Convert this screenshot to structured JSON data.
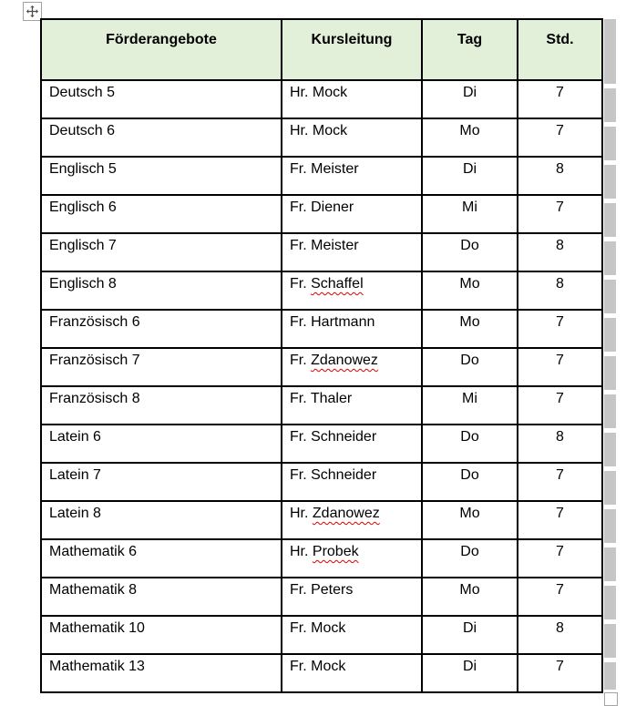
{
  "icons": {
    "move_handle": "four-arrows-move-icon",
    "resize_handle": "resize-square-icon"
  },
  "colors": {
    "header_bg": "#e2efd9",
    "table_border": "#000000",
    "squiggle": "#e00000",
    "ruler_gray": "#c6c6c6",
    "handle_border": "#a3a3a3"
  },
  "table": {
    "headers": [
      "Förderangebote",
      "Kursleitung",
      "Tag",
      "Std."
    ],
    "rows": [
      {
        "subject": "Deutsch 5",
        "leader_prefix": "Hr. ",
        "leader_name": "Mock",
        "misspelled": false,
        "day": "Di",
        "std": "7"
      },
      {
        "subject": "Deutsch 6",
        "leader_prefix": "Hr. ",
        "leader_name": "Mock",
        "misspelled": false,
        "day": "Mo",
        "std": "7"
      },
      {
        "subject": "Englisch 5",
        "leader_prefix": "Fr. ",
        "leader_name": "Meister",
        "misspelled": false,
        "day": "Di",
        "std": "8"
      },
      {
        "subject": "Englisch 6",
        "leader_prefix": "Fr. ",
        "leader_name": "Diener",
        "misspelled": false,
        "day": "Mi",
        "std": "7"
      },
      {
        "subject": "Englisch 7",
        "leader_prefix": "Fr. ",
        "leader_name": "Meister",
        "misspelled": false,
        "day": "Do",
        "std": "8"
      },
      {
        "subject": "Englisch 8",
        "leader_prefix": "Fr. ",
        "leader_name": "Schaffel",
        "misspelled": true,
        "day": "Mo",
        "std": "8"
      },
      {
        "subject": "Französisch 6",
        "leader_prefix": "Fr. ",
        "leader_name": "Hartmann",
        "misspelled": false,
        "day": "Mo",
        "std": "7"
      },
      {
        "subject": "Französisch 7",
        "leader_prefix": "Fr. ",
        "leader_name": "Zdanowez",
        "misspelled": true,
        "day": "Do",
        "std": "7"
      },
      {
        "subject": "Französisch 8",
        "leader_prefix": "Fr. ",
        "leader_name": "Thaler",
        "misspelled": false,
        "day": "Mi",
        "std": "7"
      },
      {
        "subject": "Latein 6",
        "leader_prefix": "Fr. ",
        "leader_name": "Schneider",
        "misspelled": false,
        "day": "Do",
        "std": "8"
      },
      {
        "subject": "Latein 7",
        "leader_prefix": "Fr. ",
        "leader_name": "Schneider",
        "misspelled": false,
        "day": "Do",
        "std": "7"
      },
      {
        "subject": "Latein 8",
        "leader_prefix": "Hr. ",
        "leader_name": "Zdanowez",
        "misspelled": true,
        "day": "Mo",
        "std": "7"
      },
      {
        "subject": "Mathematik 6",
        "leader_prefix": "Hr. ",
        "leader_name": "Probek",
        "misspelled": true,
        "day": "Do",
        "std": "7"
      },
      {
        "subject": "Mathematik 8",
        "leader_prefix": "Fr. ",
        "leader_name": "Peters",
        "misspelled": false,
        "day": "Mo",
        "std": "7"
      },
      {
        "subject": "Mathematik 10",
        "leader_prefix": "Fr. ",
        "leader_name": "Mock",
        "misspelled": false,
        "day": "Di",
        "std": "8"
      },
      {
        "subject": "Mathematik 13",
        "leader_prefix": "Fr. ",
        "leader_name": "Mock",
        "misspelled": false,
        "day": "Di",
        "std": "7"
      }
    ]
  }
}
